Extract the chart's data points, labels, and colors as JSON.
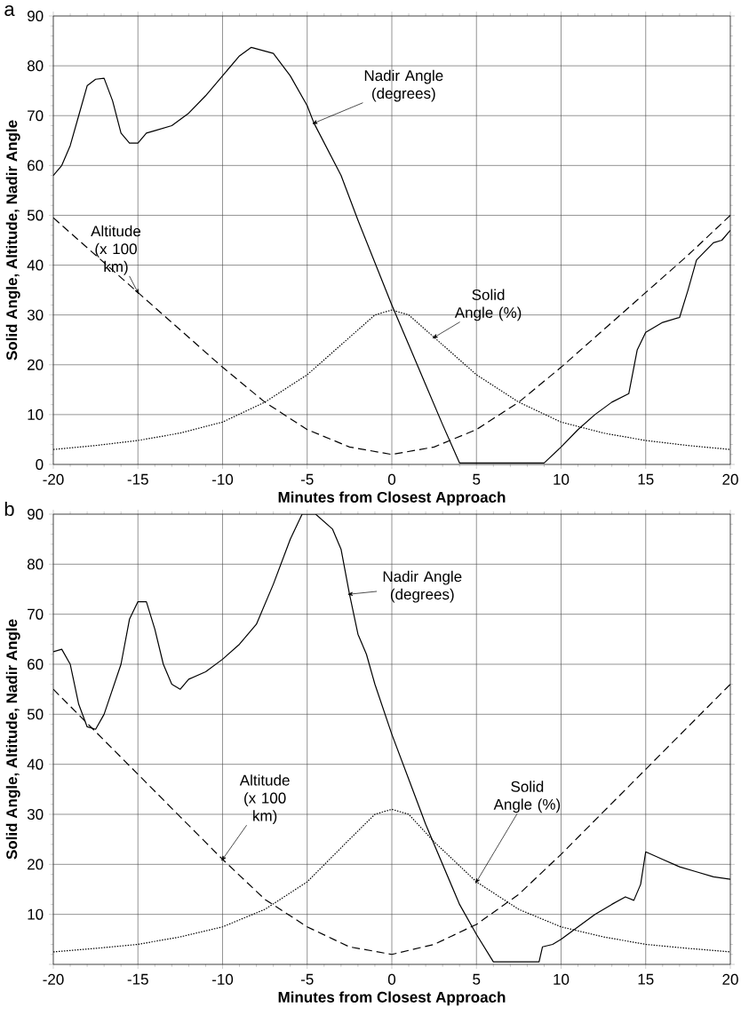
{
  "chart_data": [
    {
      "type": "line",
      "title": "a",
      "xlabel": "Minutes from Closest Approach",
      "ylabel": "Solid Angle, Altitude, Nadir Angle",
      "xlim": [
        -20,
        20
      ],
      "ylim": [
        0,
        90
      ],
      "xticks": [
        -20,
        -15,
        -10,
        -5,
        0,
        5,
        10,
        15,
        20
      ],
      "yticks": [
        0,
        10,
        20,
        30,
        40,
        50,
        60,
        70,
        80,
        90
      ],
      "grid": true,
      "marker": "none",
      "series": [
        {
          "color": "#000000",
          "line_style": "solid",
          "x": [
            -20,
            -19.5,
            -19,
            -18.5,
            -18,
            -17.5,
            -17,
            -16.5,
            -16,
            -15.5,
            -15,
            -14.5,
            -14,
            -13,
            -12,
            -11,
            -10,
            -9,
            -8.3,
            -7,
            -6,
            -5,
            -4.6,
            -3,
            -2,
            -1,
            0,
            1,
            2,
            3,
            4,
            5,
            9,
            10,
            11,
            12,
            13,
            14,
            14.5,
            15,
            16,
            17,
            17.5,
            18,
            19,
            19.5,
            20
          ],
          "values": [
            58,
            60,
            64,
            70,
            76,
            77.3,
            77.5,
            73,
            66.5,
            64.5,
            64.5,
            66.5,
            67,
            68,
            70.5,
            74,
            78,
            82,
            83.7,
            82.5,
            78,
            72,
            68.5,
            58,
            49,
            40.5,
            32,
            24,
            16,
            8,
            0.3,
            0.3,
            0.3,
            3.5,
            7,
            10,
            12.5,
            14.2,
            23,
            26.5,
            28.5,
            29.5,
            35,
            41,
            44.5,
            45,
            47
          ]
        },
        {
          "color": "#000000",
          "line_style": "dashed",
          "x": [
            -20,
            -17.5,
            -15,
            -12.5,
            -10,
            -7.5,
            -5,
            -2.5,
            0,
            2.5,
            5,
            7.5,
            10,
            12.5,
            15,
            17.5,
            20
          ],
          "values": [
            49.5,
            42,
            34.5,
            27,
            19.5,
            12.5,
            7,
            3.5,
            2,
            3.5,
            7,
            12.5,
            19.5,
            27,
            34.5,
            42,
            50
          ]
        },
        {
          "color": "#000000",
          "line_style": "dotted",
          "x": [
            -20,
            -17.5,
            -15,
            -12.5,
            -10,
            -7.5,
            -5,
            -2.5,
            -1,
            0,
            1,
            2.5,
            5,
            7.5,
            10,
            12.5,
            15,
            17.5,
            20
          ],
          "values": [
            3,
            3.8,
            4.8,
            6.3,
            8.5,
            12.5,
            18,
            25.5,
            30,
            31,
            30,
            25.5,
            18,
            12.5,
            8.5,
            6.3,
            4.8,
            3.8,
            3
          ]
        }
      ],
      "annotations": [
        {
          "text": "Nadir Angle (degrees)",
          "x": -4.6,
          "y": 68.5
        },
        {
          "text": "Altitude (x 100 km)",
          "x": -15,
          "y": 34.5
        },
        {
          "text": "Solid Angle (%)",
          "x": 2.5,
          "y": 25.5
        }
      ]
    },
    {
      "type": "line",
      "title": "b",
      "xlabel": "Minutes from Closest Approach",
      "ylabel": "Solid Angle, Altitude, Nadir Angle",
      "xlim": [
        -20,
        20
      ],
      "ylim": [
        0,
        90
      ],
      "xticks": [
        -20,
        -15,
        -10,
        -5,
        0,
        5,
        10,
        15,
        20
      ],
      "yticks": [
        {
          "value": 0,
          "label": null
        },
        10,
        20,
        30,
        40,
        50,
        60,
        70,
        80,
        90
      ],
      "grid": true,
      "marker": "none",
      "series": [
        {
          "color": "#000000",
          "line_style": "solid",
          "x": [
            -20,
            -19.5,
            -19,
            -18.5,
            -18,
            -17.5,
            -17,
            -16,
            -15.5,
            -15,
            -14.5,
            -14,
            -13.5,
            -13,
            -12.5,
            -12,
            -11,
            -10,
            -9,
            -8,
            -7,
            -6,
            -5.3,
            -4.5,
            -3.5,
            -3,
            -2.5,
            -2,
            -1.5,
            -1,
            0,
            1,
            2,
            3,
            4,
            5,
            6,
            8.7,
            8.9,
            9.5,
            10,
            11,
            12,
            13,
            13.8,
            14.3,
            14.7,
            15,
            16,
            17,
            18,
            19,
            20
          ],
          "values": [
            62.5,
            63,
            60,
            52,
            47.5,
            47,
            50,
            60,
            69,
            72.5,
            72.5,
            67,
            60,
            56,
            55,
            57,
            58.5,
            61,
            64,
            68,
            76,
            85,
            90,
            90,
            87,
            83,
            74,
            66,
            62,
            56,
            46,
            37,
            28,
            20,
            12,
            6,
            0.5,
            0.5,
            3.5,
            4,
            5,
            7.5,
            10,
            12,
            13.5,
            12.8,
            16,
            22.5,
            21,
            19.5,
            18.5,
            17.5,
            17
          ]
        },
        {
          "color": "#000000",
          "line_style": "dashed",
          "x": [
            -20,
            -17.5,
            -15,
            -12.5,
            -10,
            -7.5,
            -5,
            -2.5,
            0,
            2.5,
            5,
            7.5,
            10,
            12.5,
            15,
            17.5,
            20
          ],
          "values": [
            55,
            46.5,
            38,
            29.5,
            21,
            13,
            7.5,
            3.5,
            2,
            4,
            8,
            14,
            22,
            30.5,
            39,
            47.5,
            56
          ]
        },
        {
          "color": "#000000",
          "line_style": "dotted",
          "x": [
            -20,
            -17.5,
            -15,
            -12.5,
            -10,
            -7.5,
            -5,
            -2.5,
            -1,
            0,
            1,
            2.5,
            5,
            7.5,
            10,
            12.5,
            15,
            17.5,
            20
          ],
          "values": [
            2.5,
            3.2,
            4,
            5.5,
            7.5,
            11,
            16.5,
            25,
            30,
            31,
            30,
            24.5,
            16.5,
            11,
            7.5,
            5.5,
            4,
            3.2,
            2.5
          ]
        }
      ],
      "annotations": [
        {
          "text": "Nadir Angle (degrees)",
          "x": -2.5,
          "y": 74
        },
        {
          "text": "Altitude (x 100 km)",
          "x": -10,
          "y": 21
        },
        {
          "text": "Solid Angle (%)",
          "x": 5,
          "y": 16.5
        }
      ]
    }
  ]
}
